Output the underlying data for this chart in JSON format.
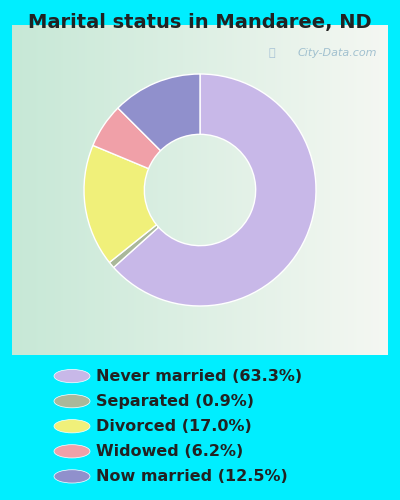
{
  "title": "Marital status in Mandaree, ND",
  "slices": [
    {
      "label": "Never married (63.3%)",
      "value": 63.3,
      "color": "#c8b8e8"
    },
    {
      "label": "Separated (0.9%)",
      "value": 0.9,
      "color": "#aab89a"
    },
    {
      "label": "Divorced (17.0%)",
      "value": 17.0,
      "color": "#f0f07a"
    },
    {
      "label": "Widowed (6.2%)",
      "value": 6.2,
      "color": "#f0a0a8"
    },
    {
      "label": "Now married (12.5%)",
      "value": 12.5,
      "color": "#9090cc"
    }
  ],
  "legend_colors": [
    "#c8b8e8",
    "#aab89a",
    "#f0f07a",
    "#f0a0a8",
    "#9090cc"
  ],
  "legend_labels": [
    "Never married (63.3%)",
    "Separated (0.9%)",
    "Divorced (17.0%)",
    "Widowed (6.2%)",
    "Now married (12.5%)"
  ],
  "outer_bg": "#00eeff",
  "watermark": "City-Data.com",
  "title_fontsize": 14,
  "title_color": "#222222",
  "legend_fontsize": 11.5,
  "donut_width": 0.52,
  "startangle": 90
}
